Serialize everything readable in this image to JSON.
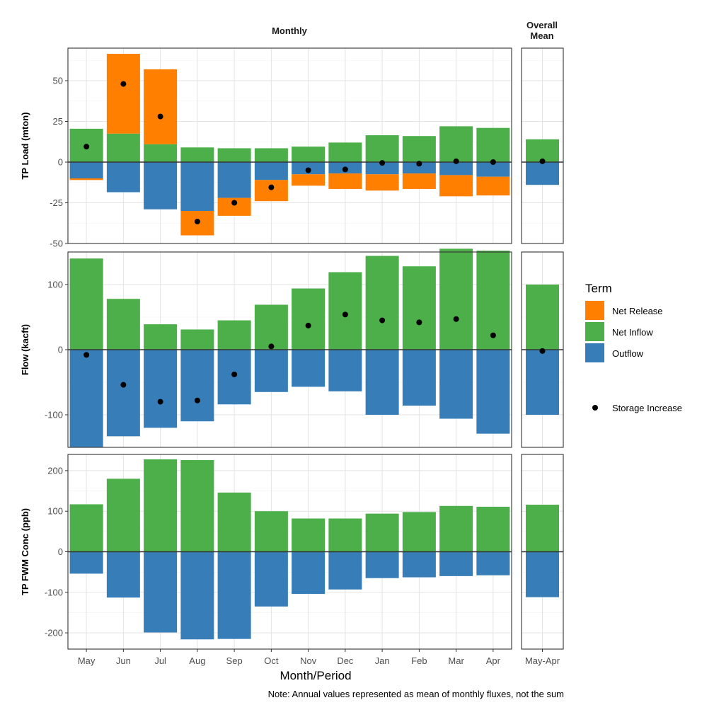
{
  "facet_strips": {
    "monthly": "Monthly",
    "overall_line1": "Overall",
    "overall_line2": "Mean"
  },
  "x_axis_title": "Month/Period",
  "caption": "Note: Annual values represented as mean of monthly fluxes, not the sum",
  "legend": {
    "title": "Term",
    "items": [
      {
        "label": "Net Release",
        "color": "#FF7F00"
      },
      {
        "label": "Net Inflow",
        "color": "#4DAF4A"
      },
      {
        "label": "Outflow",
        "color": "#377EB8"
      }
    ],
    "point_label": "Storage Increase"
  },
  "chart_data": [
    {
      "type": "bar",
      "ylabel": "TP Load (mton)",
      "ylim": [
        -50,
        70
      ],
      "yticks": [
        -50,
        -25,
        0,
        25,
        50
      ],
      "grid": true,
      "stacked": true,
      "categories": [
        "May",
        "Jun",
        "Jul",
        "Aug",
        "Sep",
        "Oct",
        "Nov",
        "Dec",
        "Jan",
        "Feb",
        "Mar",
        "Apr"
      ],
      "overall_category": "May-Apr",
      "series": [
        {
          "name": "Net Inflow",
          "values": [
            20.5,
            17.5,
            11,
            9,
            8.5,
            8.5,
            9.5,
            12,
            16.5,
            16,
            22,
            21
          ],
          "overall": 14
        },
        {
          "name": "Outflow",
          "values": [
            -10,
            -18.5,
            -29,
            -30,
            -22,
            -11,
            -7.5,
            -7,
            -7.5,
            -7,
            -8,
            -9
          ],
          "overall": -14
        },
        {
          "name": "Net Release",
          "values": [
            -1,
            49,
            46,
            -15,
            -11,
            -13,
            -7,
            -9.5,
            -10,
            -9.5,
            -13,
            -11.5
          ],
          "overall": 0
        }
      ],
      "storage_increase": [
        9.5,
        48,
        28,
        -36.5,
        -25,
        -15.5,
        -5,
        -4.5,
        -0.5,
        -1,
        0.5,
        0
      ],
      "storage_increase_overall": 0.5
    },
    {
      "type": "bar",
      "ylabel": "Flow (kacft)",
      "ylim": [
        -150,
        150
      ],
      "yticks": [
        -100,
        0,
        100
      ],
      "grid": true,
      "stacked": true,
      "categories": [
        "May",
        "Jun",
        "Jul",
        "Aug",
        "Sep",
        "Oct",
        "Nov",
        "Dec",
        "Jan",
        "Feb",
        "Mar",
        "Apr"
      ],
      "overall_category": "May-Apr",
      "series": [
        {
          "name": "Net Inflow",
          "values": [
            140,
            78,
            39,
            31,
            45,
            69,
            94,
            119,
            144,
            128,
            155,
            152
          ],
          "overall": 100
        },
        {
          "name": "Outflow",
          "values": [
            -150,
            -133,
            -120,
            -110,
            -84,
            -65,
            -57,
            -64,
            -100,
            -86,
            -106,
            -129
          ],
          "overall": -100
        }
      ],
      "storage_increase": [
        -8,
        -54,
        -80,
        -78,
        -38,
        5,
        37,
        54,
        45,
        42,
        47,
        22
      ],
      "storage_increase_overall": -2
    },
    {
      "type": "bar",
      "ylabel": "TP FWM Conc (ppb)",
      "ylim": [
        -240,
        240
      ],
      "yticks": [
        -200,
        -100,
        0,
        100,
        200
      ],
      "grid": true,
      "categories": [
        "May",
        "Jun",
        "Jul",
        "Aug",
        "Sep",
        "Oct",
        "Nov",
        "Dec",
        "Jan",
        "Feb",
        "Mar",
        "Apr"
      ],
      "overall_category": "May-Apr",
      "series": [
        {
          "name": "Net Inflow",
          "values": [
            117,
            180,
            228,
            226,
            146,
            100,
            82,
            82,
            94,
            98,
            113,
            111
          ],
          "overall": 116
        },
        {
          "name": "Outflow",
          "values": [
            -54,
            -113,
            -199,
            -216,
            -215,
            -135,
            -104,
            -93,
            -65,
            -63,
            -60,
            -58
          ],
          "overall": -112
        }
      ]
    }
  ]
}
